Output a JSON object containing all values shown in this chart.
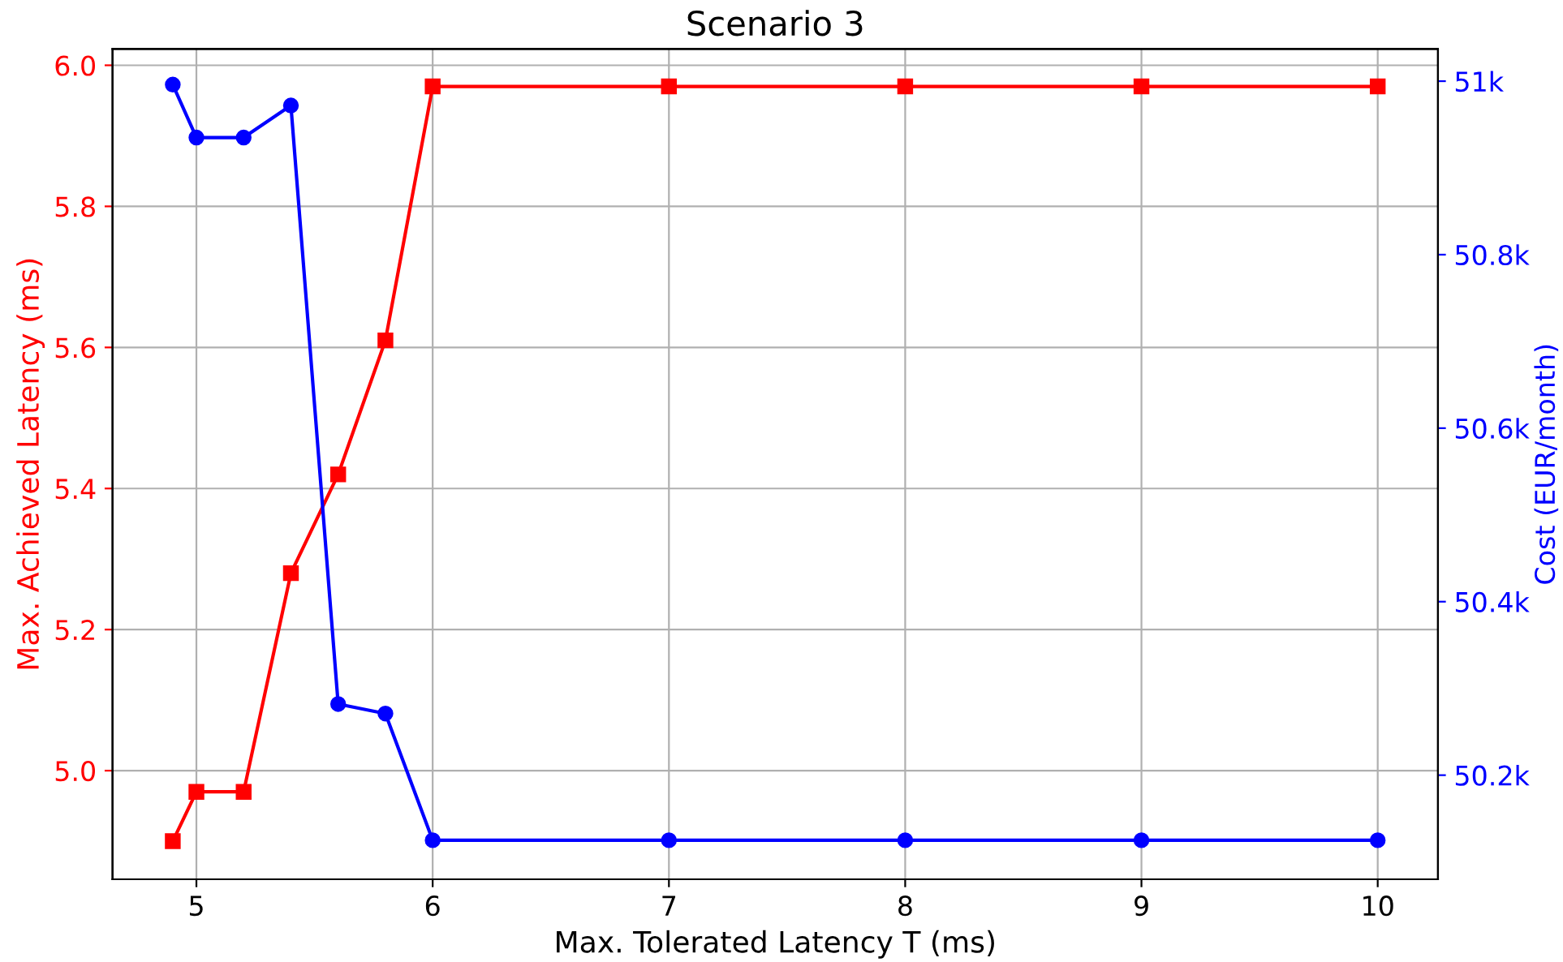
{
  "chart_data": {
    "type": "line",
    "title": "Scenario 3",
    "xlabel": "Max. Tolerated Latency T (ms)",
    "ylabel": "Max. Achieved Latency (ms)",
    "y2label": "Cost (EUR/month)",
    "x": [
      4.9,
      5.0,
      5.2,
      5.4,
      5.6,
      5.8,
      6,
      7,
      8,
      9,
      10
    ],
    "series": [
      {
        "color": "#ff0000",
        "marker": "square",
        "values": [
          4.9,
          4.97,
          4.97,
          5.28,
          5.42,
          5.61,
          5.97,
          5.97,
          5.97,
          5.97,
          5.97
        ]
      },
      {
        "color": "#0000ff",
        "marker": "circle",
        "axis": "y2",
        "values": [
          50996,
          50935,
          50935,
          50972,
          50282,
          50271,
          50125,
          50125,
          50125,
          50125,
          50125
        ]
      }
    ],
    "xlim": [
      4.645,
      10.255
    ],
    "xticks": [
      5,
      6,
      7,
      8,
      9,
      10
    ],
    "ylim": [
      4.846,
      6.023
    ],
    "yticks": [
      {
        "value": 5.0,
        "label": "5.0"
      },
      5.2,
      5.4,
      5.6,
      5.8,
      {
        "value": 6.0,
        "label": "6.0"
      }
    ],
    "y2lim": [
      50080,
      51037
    ],
    "y2ticks": [
      {
        "value": 50200,
        "label": "50.2k"
      },
      {
        "value": 50400,
        "label": "50.4k"
      },
      {
        "value": 50600,
        "label": "50.6k"
      },
      {
        "value": 50800,
        "label": "50.8k"
      },
      {
        "value": 51000,
        "label": "51k"
      }
    ],
    "grid": true,
    "line_style": "solid"
  }
}
